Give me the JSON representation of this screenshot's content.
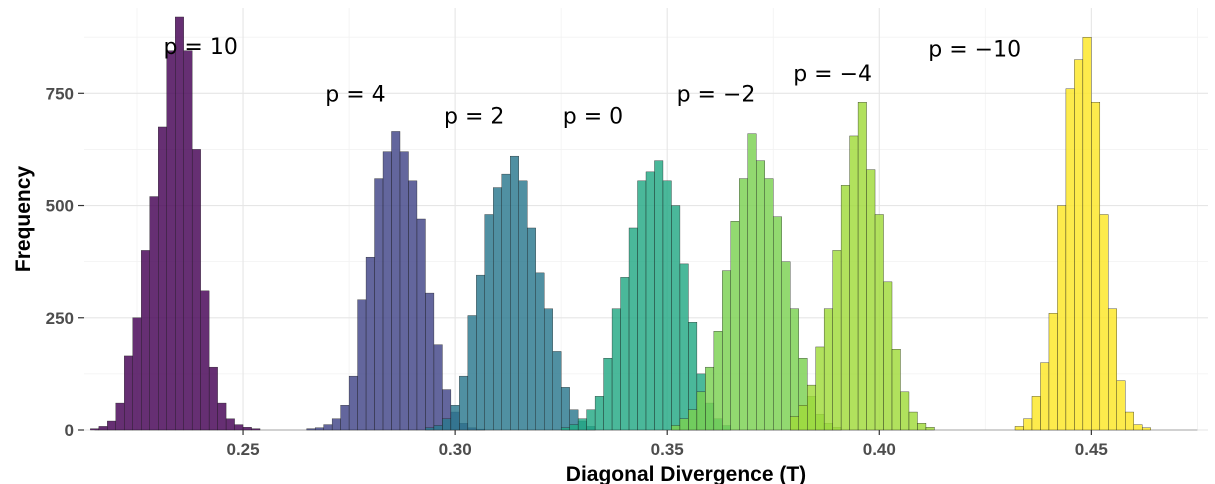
{
  "chart_data": {
    "type": "bar",
    "title": "",
    "xlabel": "Diagonal Divergence (T)",
    "ylabel": "Frequency",
    "xlim": [
      0.2125,
      0.4775
    ],
    "ylim": [
      0,
      940
    ],
    "xticks": [
      0.25,
      0.3,
      0.35,
      0.4,
      0.45
    ],
    "xtick_labels": [
      "0.25",
      "0.30",
      "0.35",
      "0.40",
      "0.45"
    ],
    "yticks": [
      0,
      250,
      500,
      750
    ],
    "ytick_labels": [
      "0",
      "250",
      "500",
      "750"
    ],
    "grid": true,
    "bin_width": 0.002,
    "series": [
      {
        "annotation": "p = 10",
        "label_x": 0.24,
        "label_y": 855,
        "color": "#440154",
        "values": [
          [
            0.215,
            3
          ],
          [
            0.217,
            8
          ],
          [
            0.219,
            20
          ],
          [
            0.221,
            60
          ],
          [
            0.223,
            165
          ],
          [
            0.225,
            250
          ],
          [
            0.227,
            400
          ],
          [
            0.229,
            520
          ],
          [
            0.231,
            675
          ],
          [
            0.233,
            845
          ],
          [
            0.235,
            920
          ],
          [
            0.237,
            845
          ],
          [
            0.239,
            625
          ],
          [
            0.241,
            310
          ],
          [
            0.243,
            140
          ],
          [
            0.245,
            60
          ],
          [
            0.247,
            25
          ],
          [
            0.249,
            12
          ],
          [
            0.251,
            6
          ],
          [
            0.253,
            3
          ]
        ]
      },
      {
        "annotation": "p = 4",
        "label_x": 0.2765,
        "label_y": 750,
        "color": "#414487",
        "values": [
          [
            0.266,
            3
          ],
          [
            0.268,
            5
          ],
          [
            0.27,
            12
          ],
          [
            0.272,
            25
          ],
          [
            0.274,
            55
          ],
          [
            0.276,
            120
          ],
          [
            0.278,
            290
          ],
          [
            0.28,
            385
          ],
          [
            0.282,
            560
          ],
          [
            0.284,
            620
          ],
          [
            0.286,
            665
          ],
          [
            0.288,
            620
          ],
          [
            0.29,
            555
          ],
          [
            0.292,
            470
          ],
          [
            0.294,
            305
          ],
          [
            0.296,
            190
          ],
          [
            0.298,
            90
          ],
          [
            0.3,
            40
          ],
          [
            0.302,
            15
          ],
          [
            0.304,
            5
          ],
          [
            0.306,
            2
          ]
        ]
      },
      {
        "annotation": "p = 2",
        "label_x": 0.3045,
        "label_y": 700,
        "color": "#2a788e",
        "values": [
          [
            0.294,
            5
          ],
          [
            0.296,
            10
          ],
          [
            0.298,
            25
          ],
          [
            0.3,
            55
          ],
          [
            0.302,
            120
          ],
          [
            0.304,
            255
          ],
          [
            0.306,
            345
          ],
          [
            0.308,
            480
          ],
          [
            0.31,
            540
          ],
          [
            0.312,
            570
          ],
          [
            0.314,
            610
          ],
          [
            0.316,
            555
          ],
          [
            0.318,
            450
          ],
          [
            0.32,
            350
          ],
          [
            0.322,
            270
          ],
          [
            0.324,
            175
          ],
          [
            0.326,
            95
          ],
          [
            0.328,
            45
          ],
          [
            0.33,
            20
          ],
          [
            0.332,
            8
          ]
        ]
      },
      {
        "annotation": "p = 0",
        "label_x": 0.3325,
        "label_y": 700,
        "color": "#22a884",
        "values": [
          [
            0.326,
            5
          ],
          [
            0.328,
            12
          ],
          [
            0.33,
            25
          ],
          [
            0.332,
            45
          ],
          [
            0.334,
            75
          ],
          [
            0.336,
            160
          ],
          [
            0.338,
            270
          ],
          [
            0.34,
            340
          ],
          [
            0.342,
            450
          ],
          [
            0.344,
            555
          ],
          [
            0.346,
            575
          ],
          [
            0.348,
            600
          ],
          [
            0.35,
            555
          ],
          [
            0.352,
            500
          ],
          [
            0.354,
            370
          ],
          [
            0.356,
            240
          ],
          [
            0.358,
            125
          ],
          [
            0.36,
            60
          ],
          [
            0.362,
            25
          ],
          [
            0.364,
            10
          ]
        ]
      },
      {
        "annotation": "p = −2",
        "label_x": 0.3615,
        "label_y": 750,
        "color": "#7ad151",
        "values": [
          [
            0.352,
            10
          ],
          [
            0.354,
            25
          ],
          [
            0.356,
            45
          ],
          [
            0.358,
            85
          ],
          [
            0.36,
            140
          ],
          [
            0.362,
            220
          ],
          [
            0.364,
            355
          ],
          [
            0.366,
            465
          ],
          [
            0.368,
            560
          ],
          [
            0.37,
            660
          ],
          [
            0.372,
            600
          ],
          [
            0.374,
            560
          ],
          [
            0.376,
            475
          ],
          [
            0.378,
            375
          ],
          [
            0.38,
            270
          ],
          [
            0.382,
            160
          ],
          [
            0.384,
            75
          ],
          [
            0.386,
            35
          ],
          [
            0.388,
            15
          ],
          [
            0.39,
            6
          ]
        ]
      },
      {
        "annotation": "p = −4",
        "label_x": 0.389,
        "label_y": 795,
        "color": "#a0da39",
        "values": [
          [
            0.38,
            30
          ],
          [
            0.382,
            55
          ],
          [
            0.384,
            100
          ],
          [
            0.386,
            185
          ],
          [
            0.388,
            270
          ],
          [
            0.39,
            400
          ],
          [
            0.392,
            545
          ],
          [
            0.394,
            655
          ],
          [
            0.396,
            730
          ],
          [
            0.398,
            580
          ],
          [
            0.4,
            480
          ],
          [
            0.402,
            330
          ],
          [
            0.404,
            180
          ],
          [
            0.406,
            85
          ],
          [
            0.408,
            40
          ],
          [
            0.41,
            15
          ],
          [
            0.412,
            6
          ]
        ]
      },
      {
        "annotation": "p = −10",
        "label_x": 0.4225,
        "label_y": 850,
        "color": "#fde725",
        "values": [
          [
            0.433,
            8
          ],
          [
            0.435,
            25
          ],
          [
            0.437,
            75
          ],
          [
            0.439,
            150
          ],
          [
            0.441,
            260
          ],
          [
            0.443,
            500
          ],
          [
            0.445,
            760
          ],
          [
            0.447,
            825
          ],
          [
            0.449,
            875
          ],
          [
            0.451,
            730
          ],
          [
            0.453,
            480
          ],
          [
            0.455,
            270
          ],
          [
            0.457,
            110
          ],
          [
            0.459,
            40
          ],
          [
            0.461,
            12
          ],
          [
            0.463,
            5
          ]
        ]
      }
    ]
  }
}
